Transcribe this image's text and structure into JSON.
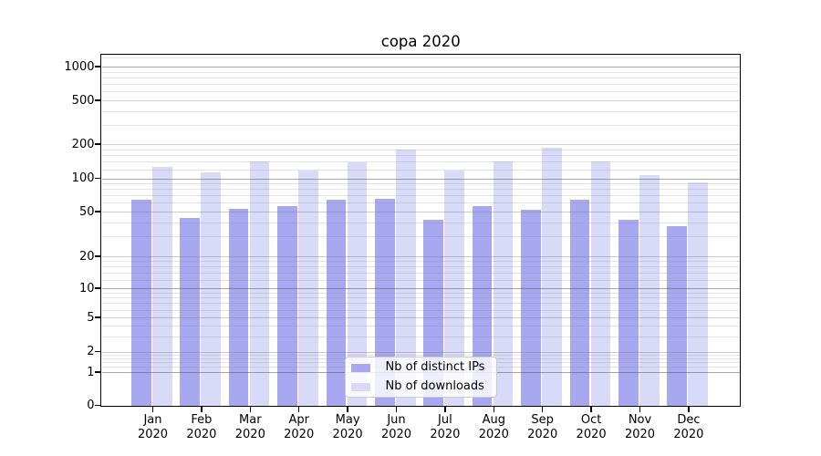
{
  "figure": {
    "title": "copa 2020",
    "background_color": "#ffffff"
  },
  "legend": {
    "entries": [
      {
        "label": "Nb of distinct IPs",
        "color": "#a8a8f0"
      },
      {
        "label": "Nb of downloads",
        "color": "#d9d9f8"
      }
    ]
  },
  "chart_data": {
    "type": "bar",
    "title": "copa 2020",
    "xlabel": "",
    "ylabel": "",
    "yscale": "log-like (log above 1, compressed linear segment down to 0)",
    "grid": "horizontal major and minor gridlines, drawn over bars",
    "legend_position": "lower center inside plot",
    "y_ticks": [
      1000,
      500,
      200,
      100,
      50,
      20,
      10,
      5,
      2,
      1,
      0
    ],
    "ylim": [
      0,
      1268
    ],
    "categories": [
      {
        "month": "Jan",
        "year": "2020"
      },
      {
        "month": "Feb",
        "year": "2020"
      },
      {
        "month": "Mar",
        "year": "2020"
      },
      {
        "month": "Apr",
        "year": "2020"
      },
      {
        "month": "May",
        "year": "2020"
      },
      {
        "month": "Jun",
        "year": "2020"
      },
      {
        "month": "Jul",
        "year": "2020"
      },
      {
        "month": "Aug",
        "year": "2020"
      },
      {
        "month": "Sep",
        "year": "2020"
      },
      {
        "month": "Oct",
        "year": "2020"
      },
      {
        "month": "Nov",
        "year": "2020"
      },
      {
        "month": "Dec",
        "year": "2020"
      }
    ],
    "series": [
      {
        "name": "Nb of distinct IPs",
        "color": "#a8a8f0",
        "values": [
          64,
          44,
          53,
          56,
          64,
          65,
          42,
          56,
          52,
          64,
          42,
          37
        ]
      },
      {
        "name": "Nb of downloads",
        "color": "#d9d9f8",
        "values": [
          125,
          113,
          142,
          118,
          137,
          178,
          117,
          140,
          185,
          140,
          107,
          92
        ]
      }
    ]
  }
}
